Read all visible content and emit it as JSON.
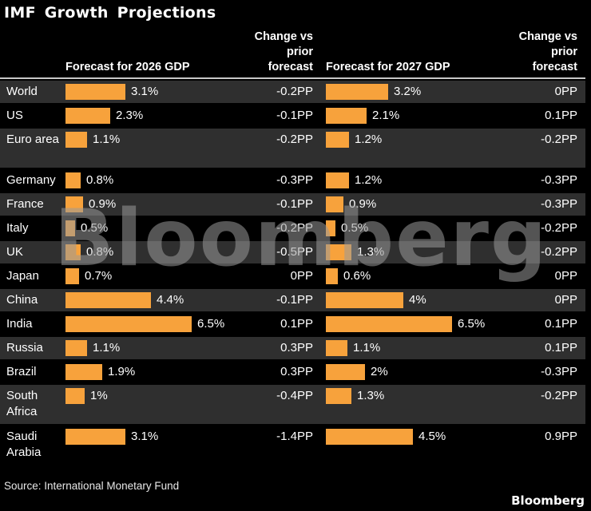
{
  "title": "IMF Growth Projections",
  "header": {
    "forecast_2026": "Forecast for 2026 GDP",
    "forecast_2027": "Forecast for 2027 GDP",
    "change_col": "Change vs\nprior\nforecast"
  },
  "chart_data": {
    "type": "bar",
    "title": "IMF Growth Projections",
    "xlabel": "",
    "ylabel": "",
    "xlim": [
      0,
      6.5
    ],
    "grid": false,
    "legend_position": "none",
    "categories": [
      "World",
      "US",
      "Euro area",
      "Germany",
      "France",
      "Italy",
      "UK",
      "Japan",
      "China",
      "India",
      "Russia",
      "Brazil",
      "South Africa",
      "Saudi Arabia"
    ],
    "series": [
      {
        "name": "Forecast for 2026 GDP",
        "unit": "%",
        "values": [
          3.1,
          2.3,
          1.1,
          0.8,
          0.9,
          0.5,
          0.8,
          0.7,
          4.4,
          6.5,
          1.1,
          1.9,
          1.0,
          3.1
        ],
        "labels": [
          "3.1%",
          "2.3%",
          "1.1%",
          "0.8%",
          "0.9%",
          "0.5%",
          "0.8%",
          "0.7%",
          "4.4%",
          "6.5%",
          "1.1%",
          "1.9%",
          "1%",
          "3.1%"
        ]
      },
      {
        "name": "Change vs prior forecast (2026)",
        "unit": "PP",
        "values": [
          -0.2,
          -0.1,
          -0.2,
          -0.3,
          -0.1,
          -0.2,
          -0.5,
          0,
          -0.1,
          0.1,
          0.3,
          0.3,
          -0.4,
          -1.4
        ],
        "labels": [
          "-0.2PP",
          "-0.1PP",
          "-0.2PP",
          "-0.3PP",
          "-0.1PP",
          "-0.2PP",
          "-0.5PP",
          "0PP",
          "-0.1PP",
          "0.1PP",
          "0.3PP",
          "0.3PP",
          "-0.4PP",
          "-1.4PP"
        ]
      },
      {
        "name": "Forecast for 2027 GDP",
        "unit": "%",
        "values": [
          3.2,
          2.1,
          1.2,
          1.2,
          0.9,
          0.5,
          1.3,
          0.6,
          4.0,
          6.5,
          1.1,
          2.0,
          1.3,
          4.5
        ],
        "labels": [
          "3.2%",
          "2.1%",
          "1.2%",
          "1.2%",
          "0.9%",
          "0.5%",
          "1.3%",
          "0.6%",
          "4%",
          "6.5%",
          "1.1%",
          "2%",
          "1.3%",
          "4.5%"
        ]
      },
      {
        "name": "Change vs prior forecast (2027)",
        "unit": "PP",
        "values": [
          0,
          0.1,
          -0.2,
          -0.3,
          -0.3,
          -0.2,
          -0.2,
          0,
          0,
          0.1,
          0.1,
          -0.3,
          -0.2,
          0.9
        ],
        "labels": [
          "0PP",
          "0.1PP",
          "-0.2PP",
          "-0.3PP",
          "-0.3PP",
          "-0.2PP",
          "-0.2PP",
          "0PP",
          "0PP",
          "0.1PP",
          "0.1PP",
          "-0.3PP",
          "-0.2PP",
          "0.9PP"
        ]
      }
    ],
    "tall_rows": [
      "Euro area",
      "South Africa",
      "Saudi Arabia"
    ]
  },
  "watermark": "Bloomberg",
  "footer": {
    "source": "Source: International Monetary Fund",
    "brand": "Bloomberg"
  },
  "colors": {
    "bar": "#F7A23C",
    "row_alt": "#2F2F2F",
    "background": "#000000",
    "header_rule": "#C8C8C8"
  }
}
